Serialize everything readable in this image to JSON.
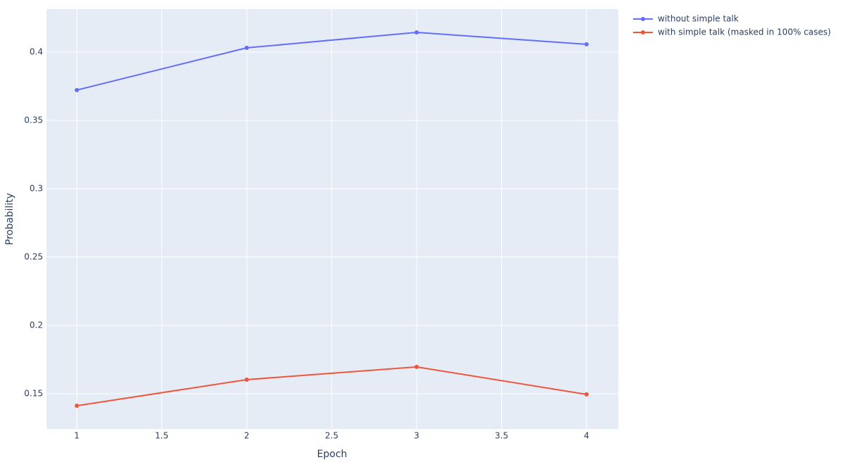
{
  "chart_data": {
    "type": "line",
    "x_label": "Epoch",
    "y_label": "Probability",
    "x": [
      1,
      2,
      3,
      4
    ],
    "series": [
      {
        "name": "without simple talk",
        "color": "#636efa",
        "values": [
          0.3722,
          0.4031,
          0.4144,
          0.4057
        ]
      },
      {
        "name": "with simple talk (masked in 100% cases)",
        "color": "#ef553b",
        "values": [
          0.1412,
          0.1603,
          0.1696,
          0.1495
        ]
      }
    ],
    "xlim": [
      0.8216,
      4.187
    ],
    "xticks": [
      1,
      1.5,
      2,
      2.5,
      3,
      3.5,
      4
    ],
    "ylim": [
      0.1242,
      0.4314
    ],
    "yticks": [
      0.15,
      0.2,
      0.25,
      0.3,
      0.35,
      0.4
    ],
    "grid": true,
    "legend": "outside-top-right"
  }
}
